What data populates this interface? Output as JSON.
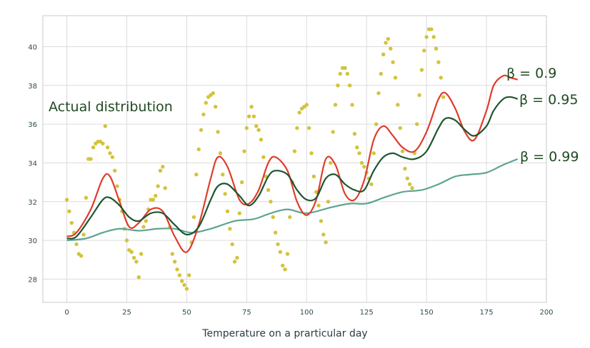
{
  "chart_data": {
    "type": "scatter",
    "title": "",
    "xlabel": "Temperature on a prarticular day",
    "ylabel": "",
    "xlim": [
      -10,
      200
    ],
    "ylim": [
      26.8,
      41.6
    ],
    "grid": true,
    "x_ticks": [
      "0",
      "25",
      "50",
      "75",
      "100",
      "125",
      "150",
      "175",
      "200"
    ],
    "y_ticks": [
      "28",
      "30",
      "32",
      "34",
      "36",
      "38",
      "40"
    ],
    "x_tick_values": [
      0,
      25,
      50,
      75,
      100,
      125,
      150,
      175,
      200
    ],
    "y_tick_values": [
      28,
      30,
      32,
      34,
      36,
      38,
      40
    ],
    "annotations": [
      "Actual distribution",
      "β = 0.9",
      "β = 0.95",
      "β = 0.99"
    ],
    "scatter": {
      "name": "Actual distribution",
      "color": "#d2c43a",
      "points": [
        [
          0,
          32.1
        ],
        [
          1,
          31.5
        ],
        [
          2,
          30.9
        ],
        [
          3,
          30.4
        ],
        [
          4,
          29.8
        ],
        [
          5,
          29.3
        ],
        [
          6,
          29.2
        ],
        [
          7,
          30.3
        ],
        [
          8,
          32.2
        ],
        [
          9,
          34.2
        ],
        [
          10,
          34.2
        ],
        [
          11,
          34.8
        ],
        [
          12,
          35.0
        ],
        [
          13,
          35.1
        ],
        [
          14,
          35.1
        ],
        [
          15,
          35.0
        ],
        [
          16,
          35.9
        ],
        [
          17,
          34.8
        ],
        [
          18,
          34.5
        ],
        [
          19,
          34.3
        ],
        [
          20,
          33.6
        ],
        [
          21,
          32.8
        ],
        [
          22,
          32.1
        ],
        [
          23,
          31.5
        ],
        [
          24,
          30.6
        ],
        [
          25,
          30.0
        ],
        [
          26,
          29.5
        ],
        [
          27,
          29.4
        ],
        [
          28,
          29.1
        ],
        [
          29,
          28.9
        ],
        [
          30,
          28.1
        ],
        [
          31,
          29.3
        ],
        [
          32,
          30.7
        ],
        [
          33,
          31.0
        ],
        [
          34,
          31.6
        ],
        [
          35,
          32.1
        ],
        [
          36,
          32.1
        ],
        [
          37,
          32.3
        ],
        [
          38,
          32.8
        ],
        [
          39,
          33.6
        ],
        [
          40,
          33.8
        ],
        [
          41,
          32.7
        ],
        [
          43,
          30.7
        ],
        [
          44,
          29.3
        ],
        [
          45,
          28.9
        ],
        [
          46,
          28.5
        ],
        [
          47,
          28.2
        ],
        [
          48,
          27.9
        ],
        [
          49,
          27.7
        ],
        [
          50,
          27.5
        ],
        [
          51,
          28.2
        ],
        [
          52,
          29.9
        ],
        [
          53,
          31.2
        ],
        [
          54,
          33.4
        ],
        [
          55,
          34.7
        ],
        [
          56,
          35.7
        ],
        [
          57,
          36.5
        ],
        [
          58,
          37.1
        ],
        [
          59,
          37.4
        ],
        [
          60,
          37.5
        ],
        [
          61,
          37.6
        ],
        [
          62,
          36.9
        ],
        [
          63,
          35.6
        ],
        [
          64,
          34.5
        ],
        [
          65,
          33.4
        ],
        [
          66,
          32.4
        ],
        [
          67,
          31.5
        ],
        [
          68,
          30.6
        ],
        [
          69,
          29.8
        ],
        [
          70,
          28.9
        ],
        [
          71,
          29.1
        ],
        [
          72,
          31.4
        ],
        [
          73,
          33.0
        ],
        [
          74,
          34.6
        ],
        [
          75,
          35.8
        ],
        [
          76,
          36.4
        ],
        [
          77,
          36.9
        ],
        [
          78,
          36.4
        ],
        [
          79,
          35.9
        ],
        [
          80,
          35.7
        ],
        [
          81,
          35.2
        ],
        [
          82,
          34.3
        ],
        [
          83,
          33.3
        ],
        [
          84,
          32.6
        ],
        [
          85,
          32.0
        ],
        [
          86,
          31.2
        ],
        [
          87,
          30.4
        ],
        [
          88,
          29.8
        ],
        [
          89,
          29.4
        ],
        [
          90,
          28.7
        ],
        [
          91,
          28.5
        ],
        [
          92,
          29.3
        ],
        [
          93,
          31.2
        ],
        [
          94,
          33.0
        ],
        [
          95,
          34.6
        ],
        [
          96,
          35.8
        ],
        [
          97,
          36.6
        ],
        [
          98,
          36.8
        ],
        [
          99,
          36.9
        ],
        [
          100,
          37.0
        ],
        [
          101,
          35.8
        ],
        [
          102,
          34.5
        ],
        [
          103,
          33.3
        ],
        [
          104,
          32.5
        ],
        [
          105,
          31.8
        ],
        [
          106,
          31.0
        ],
        [
          107,
          30.3
        ],
        [
          108,
          29.9
        ],
        [
          109,
          32.0
        ],
        [
          110,
          34.0
        ],
        [
          111,
          35.6
        ],
        [
          112,
          37.0
        ],
        [
          113,
          38.0
        ],
        [
          114,
          38.6
        ],
        [
          115,
          38.9
        ],
        [
          116,
          38.9
        ],
        [
          117,
          38.6
        ],
        [
          118,
          38.0
        ],
        [
          119,
          37.0
        ],
        [
          120,
          35.5
        ],
        [
          121,
          34.8
        ],
        [
          122,
          34.5
        ],
        [
          123,
          34.0
        ],
        [
          124,
          33.8
        ],
        [
          125,
          33.5
        ],
        [
          126,
          33.2
        ],
        [
          127,
          32.9
        ],
        [
          128,
          34.5
        ],
        [
          129,
          36.0
        ],
        [
          130,
          37.6
        ],
        [
          131,
          38.6
        ],
        [
          132,
          39.6
        ],
        [
          133,
          40.2
        ],
        [
          134,
          40.4
        ],
        [
          135,
          39.9
        ],
        [
          136,
          39.2
        ],
        [
          137,
          38.4
        ],
        [
          138,
          37.0
        ],
        [
          139,
          35.8
        ],
        [
          140,
          34.6
        ],
        [
          141,
          33.7
        ],
        [
          142,
          33.2
        ],
        [
          143,
          32.9
        ],
        [
          144,
          32.7
        ],
        [
          145,
          34.5
        ],
        [
          146,
          36.0
        ],
        [
          147,
          37.5
        ],
        [
          148,
          38.8
        ],
        [
          149,
          39.8
        ],
        [
          150,
          40.5
        ],
        [
          151,
          40.9
        ],
        [
          152,
          40.9
        ],
        [
          153,
          40.5
        ],
        [
          154,
          39.9
        ],
        [
          155,
          39.2
        ],
        [
          156,
          38.4
        ],
        [
          157,
          37.4
        ]
      ]
    },
    "series": [
      {
        "name": "β = 0.9",
        "color": "#e03c2a",
        "x": [
          0,
          4,
          10,
          15,
          18,
          22,
          26,
          30,
          35,
          40,
          45,
          50,
          55,
          60,
          63,
          67,
          72,
          76,
          80,
          84,
          87,
          92,
          96,
          100,
          104,
          108,
          112,
          116,
          120,
          124,
          128,
          132,
          136,
          140,
          145,
          150,
          155,
          158,
          162,
          166,
          170,
          175,
          178,
          182,
          185,
          188
        ],
        "y": [
          30.2,
          30.4,
          31.6,
          33.2,
          33.3,
          32.0,
          30.7,
          30.9,
          31.6,
          31.5,
          30.2,
          29.4,
          30.8,
          33.2,
          34.3,
          33.8,
          32.1,
          31.9,
          32.6,
          34.0,
          34.3,
          33.6,
          32.0,
          31.3,
          32.1,
          34.2,
          33.9,
          32.4,
          32.1,
          33.1,
          35.2,
          35.9,
          35.4,
          34.8,
          34.6,
          35.6,
          37.3,
          37.6,
          36.8,
          35.6,
          35.2,
          36.7,
          38.0,
          38.5,
          38.4,
          38.3
        ]
      },
      {
        "name": "β = 0.95",
        "color": "#1e5530",
        "x": [
          0,
          4,
          10,
          15,
          18,
          22,
          26,
          30,
          35,
          40,
          45,
          50,
          55,
          60,
          63,
          67,
          72,
          76,
          80,
          84,
          87,
          92,
          96,
          100,
          104,
          108,
          112,
          116,
          120,
          124,
          128,
          132,
          136,
          140,
          145,
          150,
          155,
          158,
          162,
          166,
          170,
          175,
          178,
          182,
          185,
          188
        ],
        "y": [
          30.1,
          30.2,
          31.2,
          32.1,
          32.2,
          31.8,
          31.2,
          31.0,
          31.4,
          31.4,
          30.8,
          30.3,
          30.7,
          32.1,
          32.8,
          32.9,
          32.3,
          31.8,
          32.3,
          33.3,
          33.6,
          33.4,
          32.6,
          32.1,
          32.2,
          33.2,
          33.4,
          32.9,
          32.6,
          32.6,
          33.6,
          34.3,
          34.5,
          34.3,
          34.2,
          34.6,
          35.8,
          36.3,
          36.2,
          35.7,
          35.4,
          35.9,
          36.7,
          37.3,
          37.4,
          37.3
        ]
      },
      {
        "name": "β = 0.99",
        "color": "#5ea392",
        "x": [
          0,
          8,
          15,
          22,
          30,
          38,
          45,
          52,
          60,
          70,
          78,
          85,
          92,
          100,
          110,
          118,
          125,
          132,
          140,
          148,
          155,
          162,
          168,
          175,
          182,
          188
        ],
        "y": [
          30.0,
          30.1,
          30.4,
          30.6,
          30.5,
          30.6,
          30.6,
          30.4,
          30.6,
          31.0,
          31.1,
          31.4,
          31.6,
          31.4,
          31.7,
          31.9,
          31.9,
          32.2,
          32.5,
          32.6,
          32.9,
          33.3,
          33.4,
          33.5,
          33.9,
          34.2
        ]
      }
    ]
  }
}
